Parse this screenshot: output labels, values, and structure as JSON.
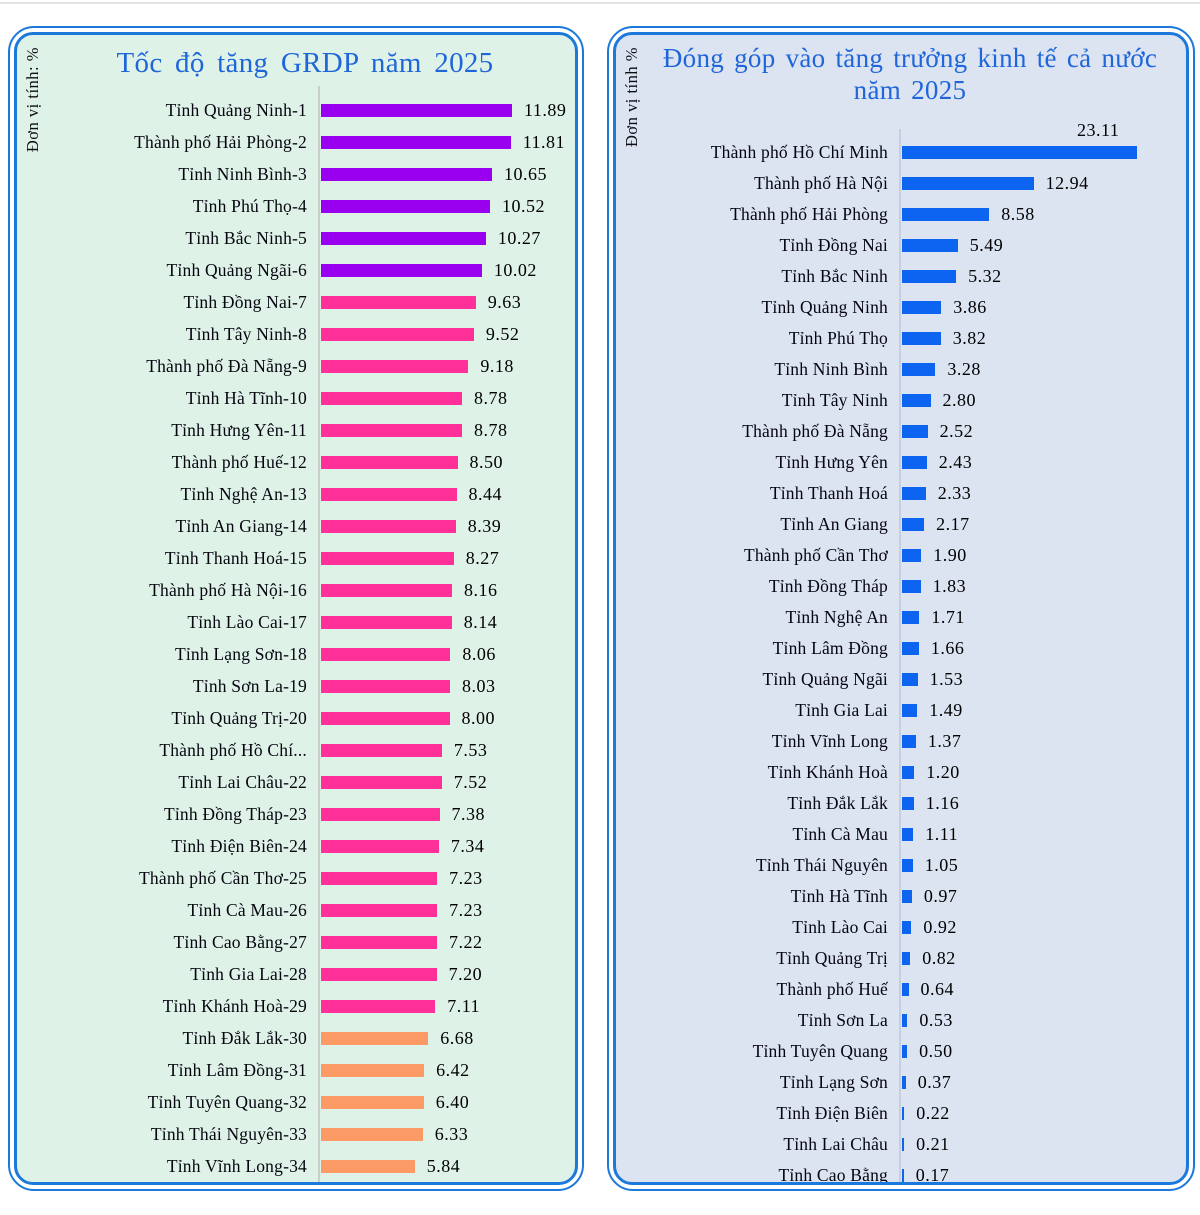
{
  "chart_data": [
    {
      "type": "bar",
      "orientation": "horizontal",
      "title": "Tốc độ tăng GRDP năm 2025",
      "unit_label": "Đơn vị tính: %",
      "xlim": [
        0,
        12.5
      ],
      "grid": false,
      "legend": "none",
      "style": {
        "panel_bg": "#dff2e8",
        "border_color": "#1c79db",
        "title_color": "#1e66d9",
        "axis_color": "#c8cec8",
        "color_top_group": "#9900f0",
        "color_mid_group": "#ff3098",
        "color_low_group": "#fb9a65"
      },
      "items": [
        {
          "label": "Tỉnh Quảng Ninh-1",
          "value": 11.89,
          "display": "11.89",
          "color": "#9900f0"
        },
        {
          "label": "Thành phố Hải Phòng-2",
          "value": 11.81,
          "display": "11.81",
          "color": "#9900f0"
        },
        {
          "label": "Tỉnh Ninh Bình-3",
          "value": 10.65,
          "display": "10.65",
          "color": "#9900f0"
        },
        {
          "label": "Tỉnh Phú Thọ-4",
          "value": 10.52,
          "display": "10.52",
          "color": "#9900f0"
        },
        {
          "label": "Tỉnh Bắc Ninh-5",
          "value": 10.27,
          "display": "10.27",
          "color": "#9900f0"
        },
        {
          "label": "Tỉnh Quảng Ngãi-6",
          "value": 10.02,
          "display": "10.02",
          "color": "#9900f0"
        },
        {
          "label": "Tỉnh Đồng Nai-7",
          "value": 9.63,
          "display": "9.63",
          "color": "#ff3098"
        },
        {
          "label": "Tỉnh Tây Ninh-8",
          "value": 9.52,
          "display": "9.52",
          "color": "#ff3098"
        },
        {
          "label": "Thành phố Đà Nẵng-9",
          "value": 9.18,
          "display": "9.18",
          "color": "#ff3098"
        },
        {
          "label": "Tỉnh Hà Tĩnh-10",
          "value": 8.78,
          "display": "8.78",
          "color": "#ff3098"
        },
        {
          "label": "Tỉnh Hưng Yên-11",
          "value": 8.78,
          "display": "8.78",
          "color": "#ff3098"
        },
        {
          "label": "Thành phố Huế-12",
          "value": 8.5,
          "display": "8.50",
          "color": "#ff3098"
        },
        {
          "label": "Tỉnh Nghệ An-13",
          "value": 8.44,
          "display": "8.44",
          "color": "#ff3098"
        },
        {
          "label": "Tỉnh An Giang-14",
          "value": 8.39,
          "display": "8.39",
          "color": "#ff3098"
        },
        {
          "label": "Tỉnh Thanh Hoá-15",
          "value": 8.27,
          "display": "8.27",
          "color": "#ff3098"
        },
        {
          "label": "Thành phố Hà Nội-16",
          "value": 8.16,
          "display": "8.16",
          "color": "#ff3098"
        },
        {
          "label": "Tỉnh Lào Cai-17",
          "value": 8.14,
          "display": "8.14",
          "color": "#ff3098"
        },
        {
          "label": "Tỉnh Lạng Sơn-18",
          "value": 8.06,
          "display": "8.06",
          "color": "#ff3098"
        },
        {
          "label": "Tỉnh Sơn La-19",
          "value": 8.03,
          "display": "8.03",
          "color": "#ff3098"
        },
        {
          "label": "Tỉnh Quảng Trị-20",
          "value": 8.0,
          "display": "8.00",
          "color": "#ff3098"
        },
        {
          "label": "Thành phố Hồ Chí...",
          "value": 7.53,
          "display": "7.53",
          "color": "#ff3098"
        },
        {
          "label": "Tỉnh Lai Châu-22",
          "value": 7.52,
          "display": "7.52",
          "color": "#ff3098"
        },
        {
          "label": "Tỉnh Đồng Tháp-23",
          "value": 7.38,
          "display": "7.38",
          "color": "#ff3098"
        },
        {
          "label": "Tỉnh Điện Biên-24",
          "value": 7.34,
          "display": "7.34",
          "color": "#ff3098"
        },
        {
          "label": "Thành phố Cần Thơ-25",
          "value": 7.23,
          "display": "7.23",
          "color": "#ff3098"
        },
        {
          "label": "Tỉnh Cà Mau-26",
          "value": 7.23,
          "display": "7.23",
          "color": "#ff3098"
        },
        {
          "label": "Tỉnh Cao Bằng-27",
          "value": 7.22,
          "display": "7.22",
          "color": "#ff3098"
        },
        {
          "label": "Tỉnh Gia Lai-28",
          "value": 7.2,
          "display": "7.20",
          "color": "#ff3098"
        },
        {
          "label": "Tỉnh Khánh Hoà-29",
          "value": 7.11,
          "display": "7.11",
          "color": "#ff3098"
        },
        {
          "label": "Tỉnh Đắk Lắk-30",
          "value": 6.68,
          "display": "6.68",
          "color": "#fb9a65"
        },
        {
          "label": "Tỉnh Lâm Đồng-31",
          "value": 6.42,
          "display": "6.42",
          "color": "#fb9a65"
        },
        {
          "label": "Tỉnh Tuyên Quang-32",
          "value": 6.4,
          "display": "6.40",
          "color": "#fb9a65"
        },
        {
          "label": "Tỉnh Thái Nguyên-33",
          "value": 6.33,
          "display": "6.33",
          "color": "#fb9a65"
        },
        {
          "label": "Tỉnh Vĩnh Long-34",
          "value": 5.84,
          "display": "5.84",
          "color": "#fb9a65"
        }
      ]
    },
    {
      "type": "bar",
      "orientation": "horizontal",
      "title": "Đóng góp vào tăng trưởng kinh tế cả nước năm 2025",
      "unit_label": "Đơn vị tính %",
      "xlim": [
        0,
        24
      ],
      "grid": false,
      "legend": "none",
      "style": {
        "panel_bg": "#dce3f1",
        "border_color": "#1c79db",
        "title_color": "#1e66d9",
        "axis_color": "#c7cede",
        "color_bars": "#0d64f0"
      },
      "items": [
        {
          "label": "Thành phố Hồ Chí Minh",
          "value": 23.11,
          "display": "23.11",
          "color": "#0d64f0"
        },
        {
          "label": "Thành phố Hà Nội",
          "value": 12.94,
          "display": "12.94",
          "color": "#0d64f0"
        },
        {
          "label": "Thành phố Hải Phòng",
          "value": 8.58,
          "display": "8.58",
          "color": "#0d64f0"
        },
        {
          "label": "Tỉnh Đồng Nai",
          "value": 5.49,
          "display": "5.49",
          "color": "#0d64f0"
        },
        {
          "label": "Tỉnh Bắc Ninh",
          "value": 5.32,
          "display": "5.32",
          "color": "#0d64f0"
        },
        {
          "label": "Tỉnh Quảng Ninh",
          "value": 3.86,
          "display": "3.86",
          "color": "#0d64f0"
        },
        {
          "label": "Tỉnh Phú Thọ",
          "value": 3.82,
          "display": "3.82",
          "color": "#0d64f0"
        },
        {
          "label": "Tỉnh Ninh Bình",
          "value": 3.28,
          "display": "3.28",
          "color": "#0d64f0"
        },
        {
          "label": "Tỉnh Tây Ninh",
          "value": 2.8,
          "display": "2.80",
          "color": "#0d64f0"
        },
        {
          "label": "Thành phố Đà Nẵng",
          "value": 2.52,
          "display": "2.52",
          "color": "#0d64f0"
        },
        {
          "label": "Tỉnh Hưng Yên",
          "value": 2.43,
          "display": "2.43",
          "color": "#0d64f0"
        },
        {
          "label": "Tỉnh Thanh Hoá",
          "value": 2.33,
          "display": "2.33",
          "color": "#0d64f0"
        },
        {
          "label": "Tỉnh An Giang",
          "value": 2.17,
          "display": "2.17",
          "color": "#0d64f0"
        },
        {
          "label": "Thành phố Cần Thơ",
          "value": 1.9,
          "display": "1.90",
          "color": "#0d64f0"
        },
        {
          "label": "Tỉnh Đồng Tháp",
          "value": 1.83,
          "display": "1.83",
          "color": "#0d64f0"
        },
        {
          "label": "Tỉnh Nghệ An",
          "value": 1.71,
          "display": "1.71",
          "color": "#0d64f0"
        },
        {
          "label": "Tỉnh Lâm Đồng",
          "value": 1.66,
          "display": "1.66",
          "color": "#0d64f0"
        },
        {
          "label": "Tỉnh Quảng Ngãi",
          "value": 1.53,
          "display": "1.53",
          "color": "#0d64f0"
        },
        {
          "label": "Tỉnh Gia Lai",
          "value": 1.49,
          "display": "1.49",
          "color": "#0d64f0"
        },
        {
          "label": "Tỉnh Vĩnh Long",
          "value": 1.37,
          "display": "1.37",
          "color": "#0d64f0"
        },
        {
          "label": "Tỉnh Khánh Hoà",
          "value": 1.2,
          "display": "1.20",
          "color": "#0d64f0"
        },
        {
          "label": "Tỉnh Đắk Lắk",
          "value": 1.16,
          "display": "1.16",
          "color": "#0d64f0"
        },
        {
          "label": "Tỉnh Cà Mau",
          "value": 1.11,
          "display": "1.11",
          "color": "#0d64f0"
        },
        {
          "label": "Tỉnh Thái Nguyên",
          "value": 1.05,
          "display": "1.05",
          "color": "#0d64f0"
        },
        {
          "label": "Tỉnh Hà Tĩnh",
          "value": 0.97,
          "display": "0.97",
          "color": "#0d64f0"
        },
        {
          "label": "Tỉnh Lào Cai",
          "value": 0.92,
          "display": "0.92",
          "color": "#0d64f0"
        },
        {
          "label": "Tỉnh Quảng Trị",
          "value": 0.82,
          "display": "0.82",
          "color": "#0d64f0"
        },
        {
          "label": "Thành phố Huế",
          "value": 0.64,
          "display": "0.64",
          "color": "#0d64f0"
        },
        {
          "label": "Tỉnh Sơn La",
          "value": 0.53,
          "display": "0.53",
          "color": "#0d64f0"
        },
        {
          "label": "Tỉnh Tuyên Quang",
          "value": 0.5,
          "display": "0.50",
          "color": "#0d64f0"
        },
        {
          "label": "Tỉnh Lạng Sơn",
          "value": 0.37,
          "display": "0.37",
          "color": "#0d64f0"
        },
        {
          "label": "Tỉnh Điện Biên",
          "value": 0.22,
          "display": "0.22",
          "color": "#0d64f0"
        },
        {
          "label": "Tỉnh Lai Châu",
          "value": 0.21,
          "display": "0.21",
          "color": "#0d64f0"
        },
        {
          "label": "Tỉnh Cao Bằng",
          "value": 0.17,
          "display": "0.17",
          "color": "#0d64f0"
        }
      ]
    }
  ]
}
